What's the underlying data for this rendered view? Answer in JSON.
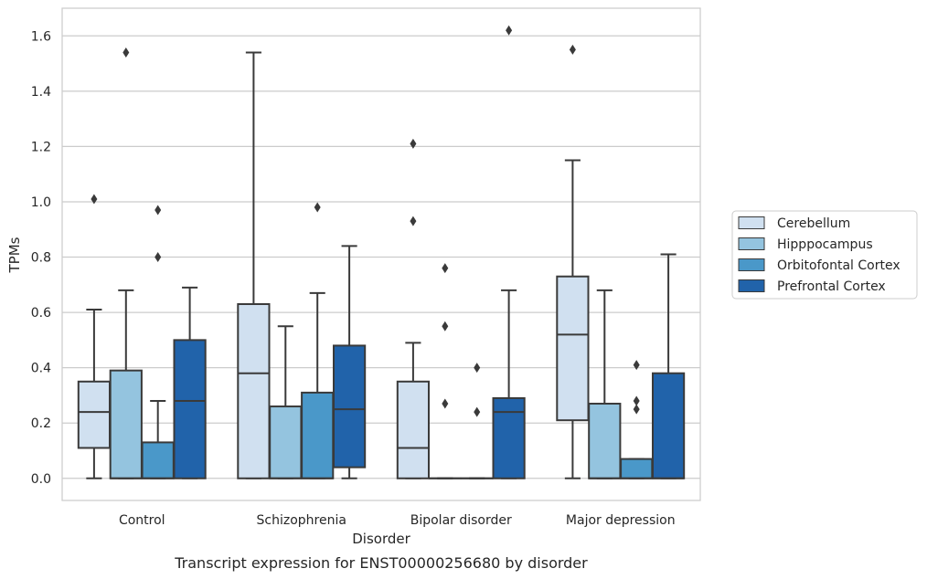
{
  "caption": "Transcript expression for ENST00000256680 by disorder",
  "chart_data": {
    "type": "box",
    "xlabel": "Disorder",
    "ylabel": "TPMs",
    "ylim": [
      -0.08,
      1.7
    ],
    "yticks": [
      0.0,
      0.2,
      0.4,
      0.6,
      0.8,
      1.0,
      1.2,
      1.4,
      1.6
    ],
    "ytick_labels": [
      "0.0",
      "0.2",
      "0.4",
      "0.6",
      "0.8",
      "1.0",
      "1.2",
      "1.4",
      "1.6"
    ],
    "grid": "horizontal",
    "legend_position": "right",
    "categories": [
      "Control",
      "Schizophrenia",
      "Bipolar disorder",
      "Major depression"
    ],
    "series": [
      {
        "name": "Cerebellum",
        "color": "#d0e0f0",
        "boxes": [
          {
            "whislo": 0.0,
            "q1": 0.11,
            "med": 0.24,
            "q3": 0.35,
            "whishi": 0.61,
            "fliers": [
              1.01
            ]
          },
          {
            "whislo": 0.0,
            "q1": 0.0,
            "med": 0.38,
            "q3": 0.63,
            "whishi": 1.54,
            "fliers": []
          },
          {
            "whislo": 0.0,
            "q1": 0.0,
            "med": 0.11,
            "q3": 0.35,
            "whishi": 0.49,
            "fliers": [
              0.93,
              1.21
            ]
          },
          {
            "whislo": 0.0,
            "q1": 0.21,
            "med": 0.52,
            "q3": 0.73,
            "whishi": 1.15,
            "fliers": [
              1.55
            ]
          }
        ]
      },
      {
        "name": "Hipppocampus",
        "color": "#94c4df",
        "boxes": [
          {
            "whislo": 0.0,
            "q1": 0.0,
            "med": 0.0,
            "q3": 0.39,
            "whishi": 0.68,
            "fliers": [
              1.54
            ]
          },
          {
            "whislo": 0.0,
            "q1": 0.0,
            "med": 0.0,
            "q3": 0.26,
            "whishi": 0.55,
            "fliers": []
          },
          {
            "whislo": 0.0,
            "q1": 0.0,
            "med": 0.0,
            "q3": 0.0,
            "whishi": 0.0,
            "fliers": [
              0.27,
              0.55,
              0.76
            ]
          },
          {
            "whislo": 0.0,
            "q1": 0.0,
            "med": 0.0,
            "q3": 0.27,
            "whishi": 0.68,
            "fliers": []
          }
        ]
      },
      {
        "name": "Orbitofontal Cortex",
        "color": "#4a98c9",
        "boxes": [
          {
            "whislo": 0.0,
            "q1": 0.0,
            "med": 0.0,
            "q3": 0.13,
            "whishi": 0.28,
            "fliers": [
              0.8,
              0.97
            ]
          },
          {
            "whislo": 0.0,
            "q1": 0.0,
            "med": 0.0,
            "q3": 0.31,
            "whishi": 0.67,
            "fliers": [
              0.98
            ]
          },
          {
            "whislo": 0.0,
            "q1": 0.0,
            "med": 0.0,
            "q3": 0.0,
            "whishi": 0.0,
            "fliers": [
              0.24,
              0.4
            ]
          },
          {
            "whislo": 0.0,
            "q1": 0.0,
            "med": 0.0,
            "q3": 0.07,
            "whishi": 0.07,
            "fliers": [
              0.25,
              0.28,
              0.41
            ]
          }
        ]
      },
      {
        "name": "Prefrontal Cortex",
        "color": "#2163aa",
        "boxes": [
          {
            "whislo": 0.0,
            "q1": 0.0,
            "med": 0.28,
            "q3": 0.5,
            "whishi": 0.69,
            "fliers": []
          },
          {
            "whislo": 0.0,
            "q1": 0.04,
            "med": 0.25,
            "q3": 0.48,
            "whishi": 0.84,
            "fliers": []
          },
          {
            "whislo": 0.0,
            "q1": 0.0,
            "med": 0.24,
            "q3": 0.29,
            "whishi": 0.68,
            "fliers": [
              1.62
            ]
          },
          {
            "whislo": 0.0,
            "q1": 0.0,
            "med": 0.0,
            "q3": 0.38,
            "whishi": 0.81,
            "fliers": []
          }
        ]
      }
    ]
  }
}
